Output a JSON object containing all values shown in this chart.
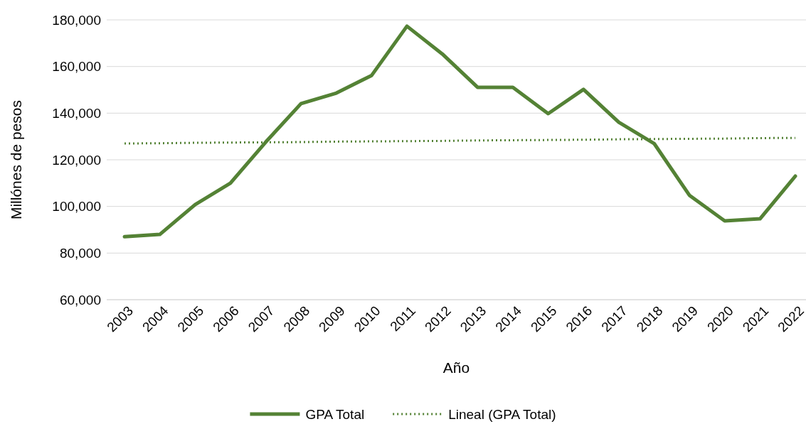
{
  "chart_data": {
    "type": "line",
    "xlabel": "Año",
    "ylabel": "Millónes de pesos",
    "categories": [
      "2003",
      "2004",
      "2005",
      "2006",
      "2007",
      "2008",
      "2009",
      "2010",
      "2011",
      "2012",
      "2013",
      "2014",
      "2015",
      "2016",
      "2017",
      "2018",
      "2019",
      "2020",
      "2021",
      "2022"
    ],
    "ylim": [
      60000,
      180000
    ],
    "yticks": [
      {
        "value": 60000,
        "label": "60,000"
      },
      {
        "value": 80000,
        "label": "80,000"
      },
      {
        "value": 100000,
        "label": "100,000"
      },
      {
        "value": 120000,
        "label": "120,000"
      },
      {
        "value": 140000,
        "label": "140,000"
      },
      {
        "value": 160000,
        "label": "160,000"
      },
      {
        "value": 180000,
        "label": "180,000"
      }
    ],
    "grid": "y",
    "legend": "bottom",
    "marker": "none",
    "series": [
      {
        "name": "GPA Total",
        "color": "#548235",
        "line_style": "solid",
        "values": [
          87000,
          88000,
          100800,
          110000,
          127600,
          144100,
          148600,
          156200,
          177300,
          165400,
          151100,
          151100,
          139800,
          150200,
          136100,
          127000,
          104800,
          93800,
          94700,
          113000
        ]
      },
      {
        "name": "Lineal (GPA Total)",
        "color": "#548235",
        "line_style": "dotted",
        "values": [
          127000,
          127100,
          127300,
          127400,
          127500,
          127600,
          127800,
          127900,
          128000,
          128100,
          128300,
          128400,
          128500,
          128600,
          128800,
          128900,
          129000,
          129100,
          129300,
          129400
        ]
      }
    ]
  }
}
